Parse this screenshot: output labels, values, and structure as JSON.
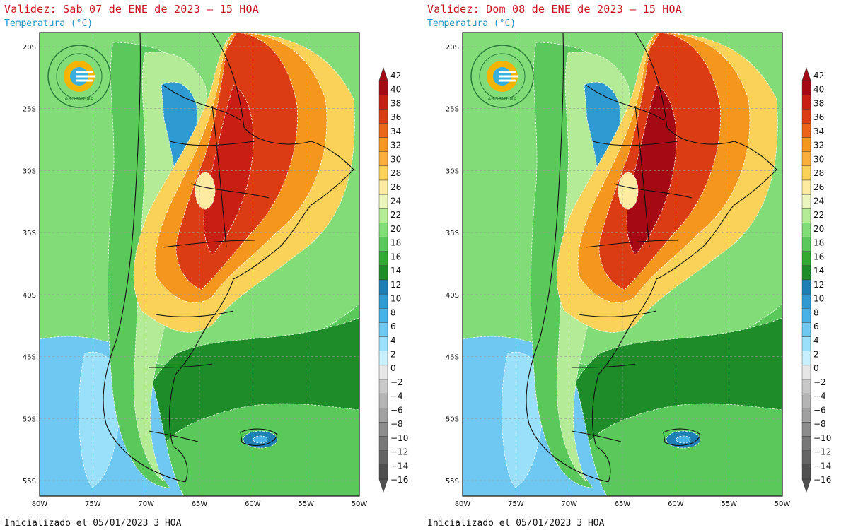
{
  "panels": [
    {
      "title": "Validez: Sab 07 de ENE de 2023 – 15 HOA",
      "subtitle": "Temperatura (°C)",
      "footer": "Inicializado el 05/01/2023 3 HOA",
      "logo": {
        "top_text": "SERVICIO METEOROLÓGICO NACIONAL",
        "bottom_text": "ARGENTINA"
      }
    },
    {
      "title": "Validez: Dom 08 de ENE de 2023 – 15 HOA",
      "subtitle": "Temperatura (°C)",
      "footer": "Inicializado el 05/01/2023 3 HOA",
      "logo": {
        "top_text": "SERVICIO METEOROLÓGICO NACIONAL",
        "bottom_text": "ARGENTINA"
      }
    }
  ],
  "map": {
    "lat_labels": [
      "20S",
      "25S",
      "30S",
      "35S",
      "40S",
      "45S",
      "50S",
      "55S"
    ],
    "lon_labels": [
      "80W",
      "75W",
      "70W",
      "65W",
      "60W",
      "55W",
      "50W"
    ],
    "gridlines": "dashed"
  },
  "colorbar": {
    "labels": [
      "42",
      "40",
      "38",
      "36",
      "34",
      "32",
      "30",
      "28",
      "26",
      "24",
      "22",
      "20",
      "18",
      "16",
      "14",
      "12",
      "10",
      "8",
      "6",
      "4",
      "2",
      "0",
      "−2",
      "−4",
      "−6",
      "−8",
      "−10",
      "−12",
      "−14",
      "−16"
    ],
    "colors": [
      "#a50a14",
      "#c81e14",
      "#dc3c14",
      "#eb6418",
      "#f5961e",
      "#faaf3c",
      "#fad25a",
      "#fceba0",
      "#ebf5be",
      "#b4eb96",
      "#82dc78",
      "#5ac85a",
      "#32aa32",
      "#1e8c28",
      "#1e7fb4",
      "#2d9ad2",
      "#46b2e8",
      "#6ec8f2",
      "#9be0fa",
      "#c8f0fc",
      "#e6e6e6",
      "#c8c8c8",
      "#b4b4b4",
      "#a0a0a0",
      "#8c8c8c",
      "#787878",
      "#646464",
      "#505050"
    ]
  }
}
